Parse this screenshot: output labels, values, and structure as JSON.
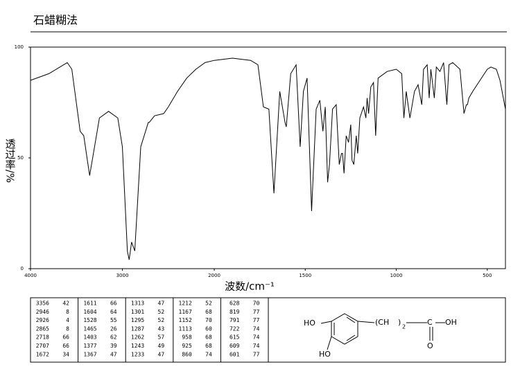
{
  "chart_data": {
    "type": "line",
    "title": "石蜡糊法",
    "xlabel": "波数/cm⁻¹",
    "ylabel": "透过率/%",
    "xlim": [
      4000,
      400
    ],
    "x_break": 2000,
    "xticks": [
      4000,
      3000,
      2000,
      1500,
      1000,
      500
    ],
    "ylim": [
      0,
      100
    ],
    "yticks": [
      0,
      50,
      100
    ],
    "color": "#000000",
    "x": [
      4000,
      3800,
      3600,
      3550,
      3460,
      3420,
      3356,
      3250,
      3150,
      3050,
      3000,
      2946,
      2926,
      2900,
      2865,
      2800,
      2718,
      2707,
      2650,
      2550,
      2500,
      2400,
      2300,
      2200,
      2100,
      2000,
      1900,
      1800,
      1760,
      1730,
      1700,
      1672,
      1640,
      1611,
      1604,
      1580,
      1550,
      1528,
      1510,
      1490,
      1465,
      1440,
      1420,
      1403,
      1390,
      1377,
      1367,
      1350,
      1330,
      1313,
      1301,
      1295,
      1287,
      1275,
      1262,
      1250,
      1243,
      1233,
      1220,
      1212,
      1200,
      1180,
      1167,
      1160,
      1152,
      1140,
      1125,
      1113,
      1100,
      1050,
      1000,
      970,
      958,
      945,
      925,
      900,
      880,
      860,
      850,
      830,
      819,
      810,
      791,
      780,
      760,
      740,
      722,
      710,
      690,
      650,
      628,
      615,
      609,
      601,
      580,
      540,
      500,
      480,
      450,
      430,
      400
    ],
    "values": [
      85,
      88,
      93,
      90,
      62,
      60,
      42,
      68,
      71,
      68,
      55,
      8,
      4,
      12,
      8,
      55,
      66,
      66,
      69,
      70,
      73,
      80,
      86,
      90,
      93,
      94,
      95,
      94,
      92,
      73,
      72,
      34,
      80,
      66,
      64,
      88,
      92,
      55,
      80,
      86,
      26,
      72,
      76,
      62,
      73,
      39,
      47,
      72,
      74,
      47,
      52,
      52,
      43,
      60,
      57,
      65,
      49,
      47,
      60,
      52,
      68,
      73,
      68,
      77,
      70,
      82,
      84,
      60,
      86,
      89,
      90,
      88,
      68,
      80,
      68,
      80,
      83,
      74,
      90,
      92,
      77,
      90,
      77,
      91,
      89,
      93,
      74,
      92,
      93,
      90,
      70,
      74,
      74,
      77,
      80,
      85,
      90,
      91,
      90,
      85,
      72
    ]
  },
  "peak_table": {
    "columns": [
      [
        [
          3356,
          42
        ],
        [
          2946,
          8
        ],
        [
          2926,
          4
        ],
        [
          2865,
          8
        ],
        [
          2718,
          66
        ],
        [
          2707,
          66
        ],
        [
          1672,
          34
        ]
      ],
      [
        [
          1611,
          66
        ],
        [
          1604,
          64
        ],
        [
          1528,
          55
        ],
        [
          1465,
          26
        ],
        [
          1403,
          62
        ],
        [
          1377,
          39
        ],
        [
          1367,
          47
        ]
      ],
      [
        [
          1313,
          47
        ],
        [
          1301,
          52
        ],
        [
          1295,
          52
        ],
        [
          1287,
          43
        ],
        [
          1262,
          57
        ],
        [
          1243,
          49
        ],
        [
          1233,
          47
        ]
      ],
      [
        [
          1212,
          52
        ],
        [
          1167,
          68
        ],
        [
          1152,
          70
        ],
        [
          1113,
          60
        ],
        [
          958,
          68
        ],
        [
          925,
          68
        ],
        [
          860,
          74
        ]
      ],
      [
        [
          628,
          70
        ],
        [
          819,
          77
        ],
        [
          791,
          77
        ],
        [
          722,
          74
        ],
        [
          615,
          74
        ],
        [
          609,
          74
        ],
        [
          601,
          77
        ]
      ]
    ]
  },
  "structure": {
    "labels": [
      "HO",
      "HO",
      "(CH",
      ")",
      "2",
      "C",
      "OH",
      "O"
    ]
  }
}
